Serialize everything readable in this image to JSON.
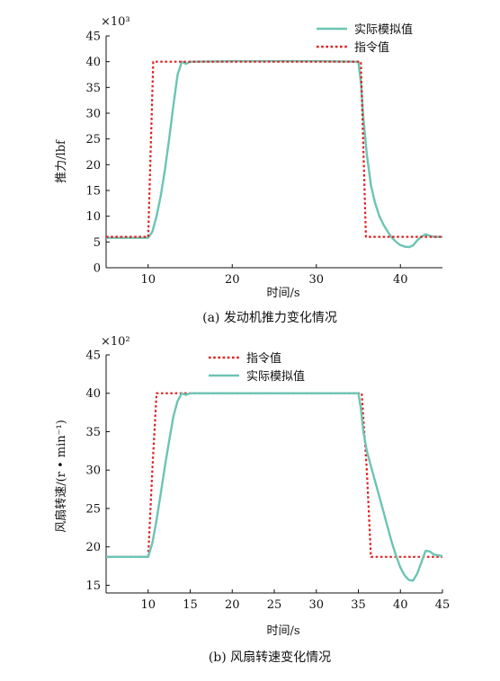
{
  "chart_data": [
    {
      "type": "line",
      "caption": "(a)  发动机推力变化情况",
      "xlabel": "时间/s",
      "ylabel": "推力/lbf",
      "y_multiplier": "×10³",
      "xlim": [
        5,
        45
      ],
      "ylim": [
        0,
        45
      ],
      "xticks": [
        "10",
        "20",
        "30",
        "40"
      ],
      "yticks": [
        "0",
        "5",
        "10",
        "15",
        "20",
        "25",
        "30",
        "35",
        "40",
        "45"
      ],
      "xtick_values": [
        10,
        20,
        30,
        40
      ],
      "ytick_values": [
        0,
        5,
        10,
        15,
        20,
        25,
        30,
        35,
        40,
        45
      ],
      "legend_position": "top-right",
      "colors": {
        "simulated": "#6cc4b4",
        "command": "#e02020"
      },
      "series": [
        {
          "name": "实际模拟值",
          "style": "solid",
          "x": [
            5,
            10,
            10.5,
            11,
            11.5,
            12,
            12.5,
            13,
            13.5,
            14,
            14.5,
            15,
            20,
            30,
            35,
            35.3,
            35.6,
            36,
            36.5,
            37,
            37.5,
            38,
            38.5,
            39,
            39.5,
            40,
            40.5,
            41,
            41.5,
            42,
            42.5,
            43,
            43.5,
            44,
            45
          ],
          "y": [
            5.8,
            5.8,
            7,
            10,
            14,
            19,
            25,
            31.5,
            37.5,
            40,
            39.6,
            40,
            40.1,
            40.1,
            40,
            36,
            29,
            22,
            16,
            12.5,
            10,
            8.3,
            7,
            5.8,
            5,
            4.4,
            4.1,
            4,
            4.3,
            5.3,
            6,
            6.5,
            6.2,
            6,
            6
          ]
        },
        {
          "name": "指令值",
          "style": "dotted",
          "x": [
            5,
            10,
            10.6,
            11,
            35,
            35.3,
            35.9,
            36.2,
            45
          ],
          "y": [
            6,
            6,
            40,
            40,
            40,
            40,
            6,
            6,
            6
          ]
        }
      ]
    },
    {
      "type": "line",
      "caption": "(b)  风扇转速变化情况",
      "xlabel": "时间/s",
      "ylabel": "风扇转速/(r • min⁻¹)",
      "y_multiplier": "×10²",
      "xlim": [
        5,
        45
      ],
      "ylim": [
        14,
        45
      ],
      "xticks": [
        "10",
        "15",
        "20",
        "25",
        "30",
        "35",
        "40",
        "45"
      ],
      "yticks": [
        "15",
        "20",
        "25",
        "30",
        "35",
        "40",
        "45"
      ],
      "xtick_values": [
        10,
        15,
        20,
        25,
        30,
        35,
        40,
        45
      ],
      "ytick_values": [
        15,
        20,
        25,
        30,
        35,
        40,
        45
      ],
      "legend_position": "top-center",
      "colors": {
        "simulated": "#6cc4b4",
        "command": "#e02020"
      },
      "series": [
        {
          "name": "指令值",
          "style": "dotted",
          "x": [
            5,
            10,
            10.5,
            11,
            35,
            35.4,
            36,
            36.5,
            45
          ],
          "y": [
            18.7,
            18.7,
            30,
            40,
            40,
            40,
            30,
            18.7,
            18.7
          ]
        },
        {
          "name": "实际模拟值",
          "style": "solid",
          "x": [
            5,
            10,
            10.5,
            11,
            11.5,
            12,
            12.5,
            13,
            13.5,
            14,
            14.5,
            15,
            20,
            30,
            35,
            35.3,
            35.6,
            36,
            36.5,
            37,
            37.5,
            38,
            38.5,
            39,
            39.5,
            40,
            40.5,
            41,
            41.5,
            42,
            42.5,
            43,
            43.5,
            44,
            44.5,
            45
          ],
          "y": [
            18.7,
            18.7,
            20.5,
            23.5,
            27,
            30.5,
            33.8,
            37,
            39,
            40,
            39.8,
            40,
            40,
            40,
            40,
            38,
            35,
            32.5,
            30.5,
            28.5,
            26.5,
            24.5,
            22.5,
            20.5,
            18.8,
            17.3,
            16.3,
            15.7,
            15.6,
            16.5,
            18,
            19.5,
            19.4,
            19,
            18.9,
            18.8
          ]
        }
      ]
    }
  ]
}
